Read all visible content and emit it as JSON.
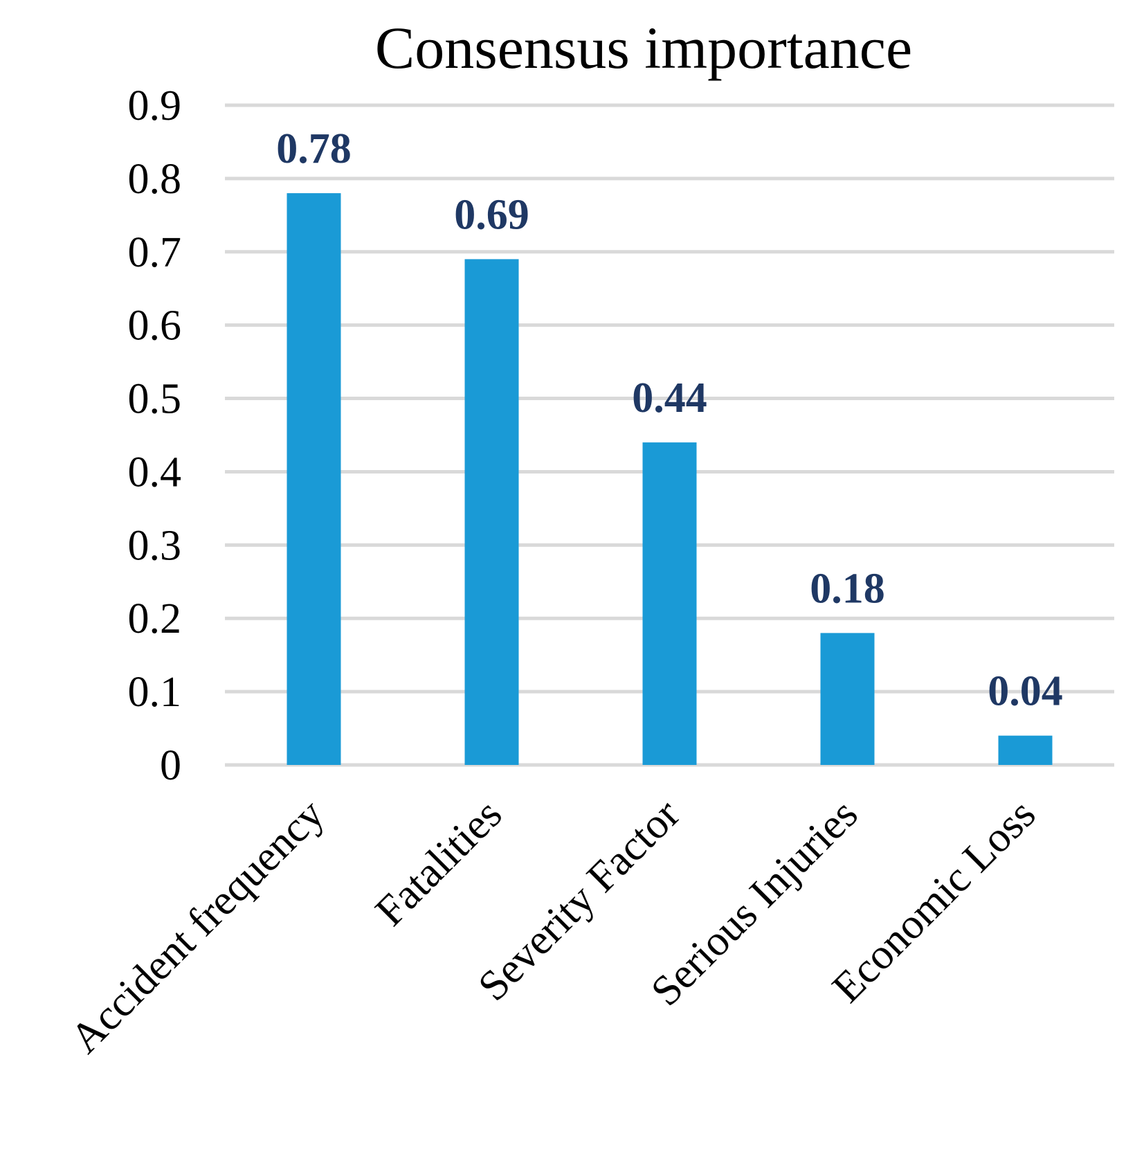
{
  "colors": {
    "bar": "#1a9ad6",
    "label": "#1f3864",
    "grid": "#d9d9d9"
  },
  "chart_data": {
    "type": "bar",
    "title": "Consensus importance",
    "xlabel": "",
    "ylabel": "",
    "ylim": [
      0,
      0.9
    ],
    "yticks": [
      "0",
      "0.1",
      "0.2",
      "0.3",
      "0.4",
      "0.5",
      "0.6",
      "0.7",
      "0.8",
      "0.9"
    ],
    "grid": true,
    "categories": [
      "Accident frequency",
      "Fatalities",
      "Severity Factor",
      "Serious Injuries",
      "Economic Loss"
    ],
    "values": [
      0.78,
      0.69,
      0.44,
      0.18,
      0.04
    ],
    "data_labels": [
      "0.78",
      "0.69",
      "0.44",
      "0.18",
      "0.04"
    ]
  }
}
